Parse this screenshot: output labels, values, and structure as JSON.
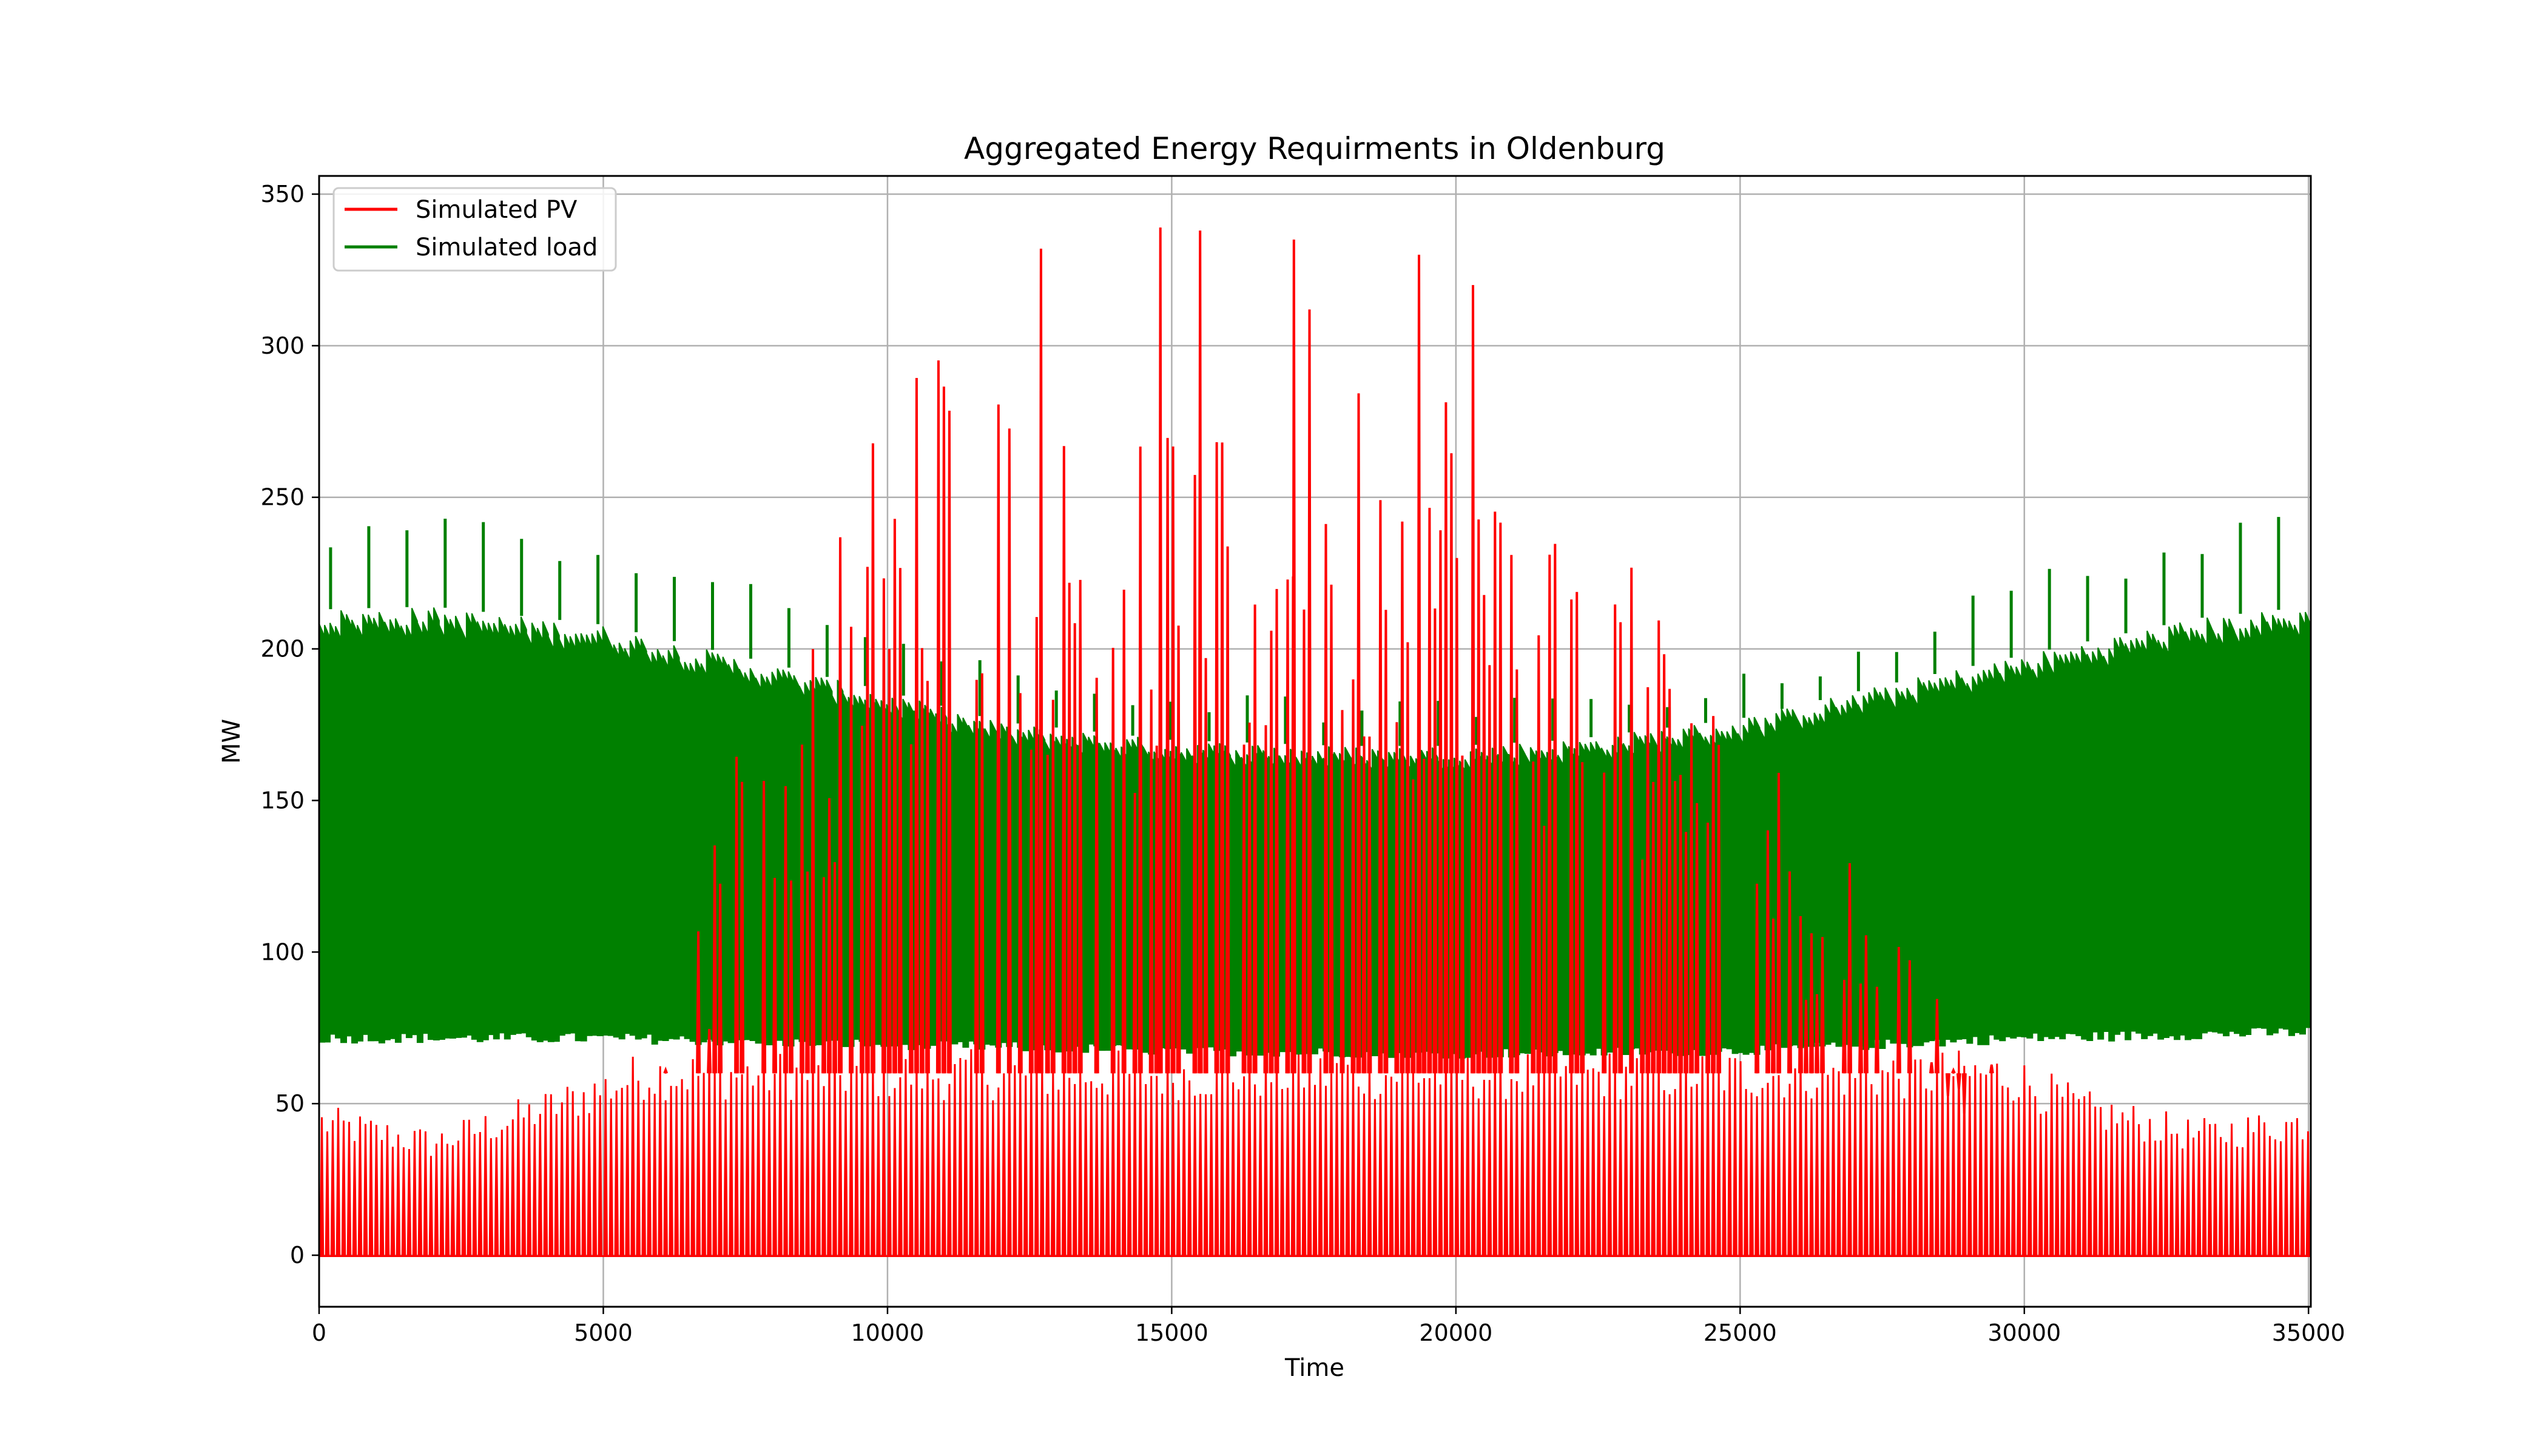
{
  "chart_data": {
    "type": "line",
    "title": "Aggregated Energy Requirments in Oldenburg",
    "xlabel": "Time",
    "ylabel": "MW",
    "xlim": [
      0,
      35040
    ],
    "ylim": [
      -17,
      356
    ],
    "xticks": [
      0,
      5000,
      10000,
      15000,
      20000,
      25000,
      30000,
      35000
    ],
    "yticks": [
      0,
      50,
      100,
      150,
      200,
      250,
      300,
      350
    ],
    "xtick_labels": [
      "0",
      "5000",
      "10000",
      "15000",
      "20000",
      "25000",
      "30000",
      "35000"
    ],
    "ytick_labels": [
      "0",
      "50",
      "100",
      "150",
      "200",
      "250",
      "300",
      "350"
    ],
    "grid": true,
    "legend_position": "top-left",
    "series": [
      {
        "name": "Simulated PV",
        "color": "#ff0000",
        "kind": "daily-peaks",
        "peak_envelope": {
          "x": [
            0,
            2000,
            4000,
            6000,
            7500,
            9000,
            10000,
            11000,
            12500,
            14000,
            15000,
            16000,
            17500,
            19000,
            20000,
            21000,
            22500,
            24000,
            25500,
            27000,
            29000,
            31000,
            33000,
            35040
          ],
          "y": [
            50,
            42,
            55,
            70,
            180,
            230,
            290,
            310,
            300,
            260,
            280,
            270,
            320,
            280,
            300,
            260,
            240,
            210,
            170,
            130,
            75,
            55,
            45,
            50
          ]
        },
        "notable_peaks": [
          {
            "x": 12700,
            "y": 332
          },
          {
            "x": 14800,
            "y": 339
          },
          {
            "x": 15500,
            "y": 338
          },
          {
            "x": 17150,
            "y": 335
          },
          {
            "x": 19350,
            "y": 330
          },
          {
            "x": 20300,
            "y": 320
          }
        ]
      },
      {
        "name": "Simulated load",
        "color": "#008000",
        "kind": "daily-band",
        "upper_envelope": {
          "x": [
            0,
            2000,
            5000,
            8000,
            10000,
            12000,
            15000,
            18000,
            20000,
            22000,
            25000,
            28000,
            30000,
            33000,
            35040
          ],
          "y": [
            213,
            214,
            208,
            195,
            186,
            176,
            170,
            168,
            168,
            170,
            177,
            190,
            198,
            210,
            214
          ]
        },
        "lower_envelope": {
          "x": [
            0,
            5000,
            10000,
            15000,
            20000,
            25000,
            30000,
            35040
          ],
          "y": [
            70,
            70,
            68,
            66,
            65,
            66,
            70,
            72
          ]
        },
        "spike_envelope": {
          "x": [
            0,
            2000,
            5000,
            8000,
            10000,
            12000,
            15000,
            18000,
            20000,
            22000,
            25000,
            28000,
            30000,
            33000,
            35040
          ],
          "y": [
            240,
            241,
            233,
            215,
            205,
            190,
            184,
            180,
            180,
            182,
            188,
            205,
            222,
            235,
            241
          ]
        }
      }
    ]
  }
}
